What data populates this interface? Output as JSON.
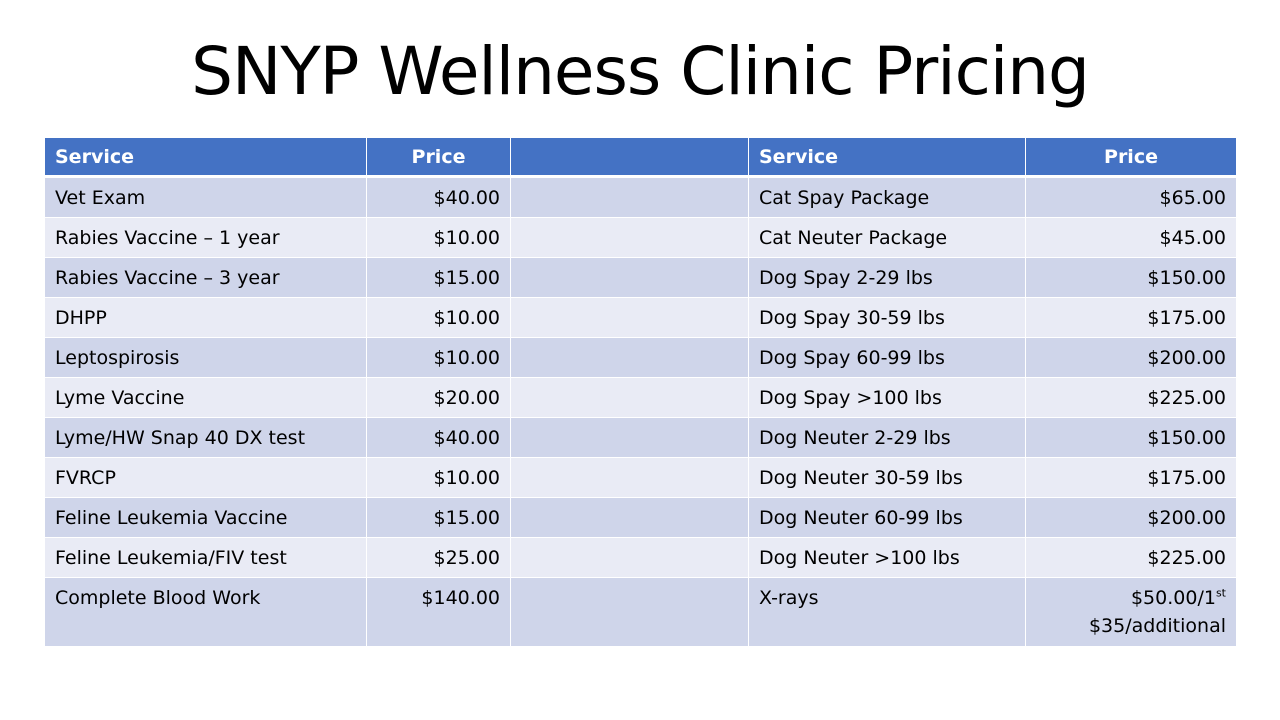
{
  "title": "SNYP Wellness Clinic Pricing",
  "colors": {
    "header_bg": "#4472c4",
    "row_dark": "#cfd5ea",
    "row_light": "#e9ebf5"
  },
  "headers": {
    "left_service": "Service",
    "left_price": "Price",
    "right_service": "Service",
    "right_price": "Price"
  },
  "rows": [
    {
      "left_service": "Vet Exam",
      "left_price": "$40.00",
      "right_service": "Cat Spay Package",
      "right_price": "$65.00"
    },
    {
      "left_service": "Rabies Vaccine – 1 year",
      "left_price": "$10.00",
      "right_service": "Cat Neuter Package",
      "right_price": "$45.00"
    },
    {
      "left_service": "Rabies Vaccine – 3 year",
      "left_price": "$15.00",
      "right_service": "Dog Spay 2-29 lbs",
      "right_price": "$150.00"
    },
    {
      "left_service": "DHPP",
      "left_price": "$10.00",
      "right_service": "Dog Spay 30-59 lbs",
      "right_price": "$175.00"
    },
    {
      "left_service": "Leptospirosis",
      "left_price": "$10.00",
      "right_service": "Dog Spay 60-99 lbs",
      "right_price": "$200.00"
    },
    {
      "left_service": "Lyme Vaccine",
      "left_price": "$20.00",
      "right_service": "Dog Spay >100 lbs",
      "right_price": "$225.00"
    },
    {
      "left_service": "Lyme/HW Snap 40 DX test",
      "left_price": "$40.00",
      "right_service": "Dog Neuter 2-29 lbs",
      "right_price": "$150.00"
    },
    {
      "left_service": "FVRCP",
      "left_price": "$10.00",
      "right_service": "Dog Neuter 30-59 lbs",
      "right_price": "$175.00"
    },
    {
      "left_service": "Feline Leukemia Vaccine",
      "left_price": "$15.00",
      "right_service": "Dog Neuter 60-99 lbs",
      "right_price": "$200.00"
    },
    {
      "left_service": "Feline Leukemia/FIV test",
      "left_price": "$25.00",
      "right_service": "Dog Neuter >100 lbs",
      "right_price": "$225.00"
    },
    {
      "left_service": "Complete Blood Work",
      "left_price": "$140.00",
      "right_service": "X-rays",
      "right_price": "$50.00/1",
      "right_price_sup": "st",
      "right_price_line2": "$35/additional"
    }
  ]
}
